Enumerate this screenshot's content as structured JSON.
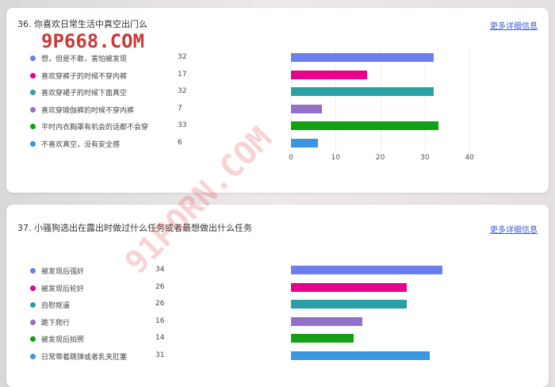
{
  "questions": [
    {
      "title": "36. 你喜欢日常生活中真空出门么",
      "more": "更多详细信息",
      "axis": {
        "ticks": [
          "0",
          "10",
          "20",
          "30",
          "40"
        ],
        "max": 40
      },
      "items": [
        {
          "label": "想，但是不敢，害怕被发现",
          "count": 32,
          "color": "#6b7ff0"
        },
        {
          "label": "喜欢穿裤子的时候不穿内裤",
          "count": 17,
          "color": "#e6008a"
        },
        {
          "label": "喜欢穿裙子的时候下面真空",
          "count": 32,
          "color": "#2a9fa5"
        },
        {
          "label": "喜欢穿瑜伽裤的时候不穿内裤",
          "count": 7,
          "color": "#9370c8"
        },
        {
          "label": "平时内衣胸罩有机会的话都不会穿",
          "count": 33,
          "color": "#14a014"
        },
        {
          "label": "不喜欢真空，没有安全感",
          "count": 6,
          "color": "#3a96e0"
        }
      ]
    },
    {
      "title": "37. 小骚狗选出在露出时做过什么任务或者最想做出什么任务",
      "more": "更多详细信息",
      "items": [
        {
          "label": "被发现后强奸",
          "count": 34,
          "color": "#6b7ff0"
        },
        {
          "label": "被发现后轮奸",
          "count": 26,
          "color": "#e6008a"
        },
        {
          "label": "自慰抠逼",
          "count": 26,
          "color": "#2a9fa5"
        },
        {
          "label": "跪下爬行",
          "count": 16,
          "color": "#9370c8"
        },
        {
          "label": "被发现后拍照",
          "count": 14,
          "color": "#14a014"
        },
        {
          "label": "日常带着跳弹或者乳夹肛塞",
          "count": 31,
          "color": "#3a96e0"
        }
      ]
    }
  ],
  "watermarks": [
    "9P668.COM",
    "91PORN.COM"
  ]
}
